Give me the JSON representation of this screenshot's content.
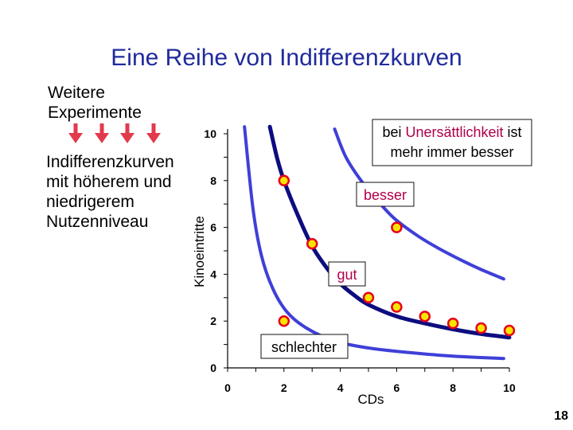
{
  "slide": {
    "title": "Eine Reihe von Indifferenzkurven",
    "sidebar_top": [
      "Weitere",
      "Experimente"
    ],
    "sidebar_bottom": [
      "Indifferenzkurven",
      "mit höherem und",
      "niedrigerem",
      "Nutzenniveau"
    ],
    "page_number": "18"
  },
  "colors": {
    "title": "#1f2a9c",
    "curve_outer": "#3f3fd8",
    "curve_main": "#0d0d80",
    "marker_fill": "#f7e600",
    "marker_stroke": "#e8001c",
    "arrow": "#e23a4d",
    "highlight": "#b0004d"
  },
  "chart_data": {
    "type": "line",
    "xlabel": "CDs",
    "ylabel": "Kinoeintritte",
    "xlim": [
      0,
      10
    ],
    "ylim": [
      0,
      10
    ],
    "x_ticks": [
      0,
      2,
      4,
      6,
      8,
      10
    ],
    "y_ticks": [
      0,
      2,
      4,
      6,
      8,
      10
    ],
    "series": [
      {
        "role": "lower",
        "x": [
          0.6,
          0.9,
          1.2,
          1.6,
          2.1,
          2.8,
          3.8,
          5,
          6.5,
          8,
          9.8
        ],
        "y": [
          10.3,
          6.8,
          4.8,
          3.4,
          2.4,
          1.7,
          1.15,
          0.85,
          0.65,
          0.5,
          0.4
        ]
      },
      {
        "role": "middle",
        "x": [
          1.5,
          1.75,
          2,
          2.5,
          3.0,
          3.5,
          4.0,
          4.5,
          5.0,
          6.0,
          7.0,
          8.0,
          9.0,
          10.0
        ],
        "y": [
          10.3,
          9.0,
          8.0,
          6.5,
          5.2,
          4.3,
          3.6,
          3.1,
          2.7,
          2.2,
          1.9,
          1.65,
          1.45,
          1.3
        ]
      },
      {
        "role": "upper",
        "x": [
          3.8,
          4.2,
          4.8,
          5.5,
          6.0,
          6.8,
          7.5,
          8.3,
          9.0,
          9.8
        ],
        "y": [
          10.2,
          9.0,
          7.9,
          6.9,
          6.3,
          5.6,
          5.1,
          4.6,
          4.2,
          3.8
        ]
      }
    ],
    "points": [
      {
        "x": 2.0,
        "y": 8.0
      },
      {
        "x": 3.0,
        "y": 5.3
      },
      {
        "x": 5.0,
        "y": 3.0
      },
      {
        "x": 6.0,
        "y": 2.6
      },
      {
        "x": 7.0,
        "y": 2.2
      },
      {
        "x": 8.0,
        "y": 1.9
      },
      {
        "x": 9.0,
        "y": 1.7
      },
      {
        "x": 10.0,
        "y": 1.6
      },
      {
        "x": 6.0,
        "y": 6.0
      },
      {
        "x": 2.0,
        "y": 2.0
      }
    ],
    "annotations": {
      "saturation_before": "bei ",
      "saturation_highlight": "Unersättlichkeit",
      "saturation_after": " ist",
      "saturation_line2": "mehr immer besser",
      "better": "besser",
      "good": "gut",
      "worse": "schlechter"
    }
  }
}
